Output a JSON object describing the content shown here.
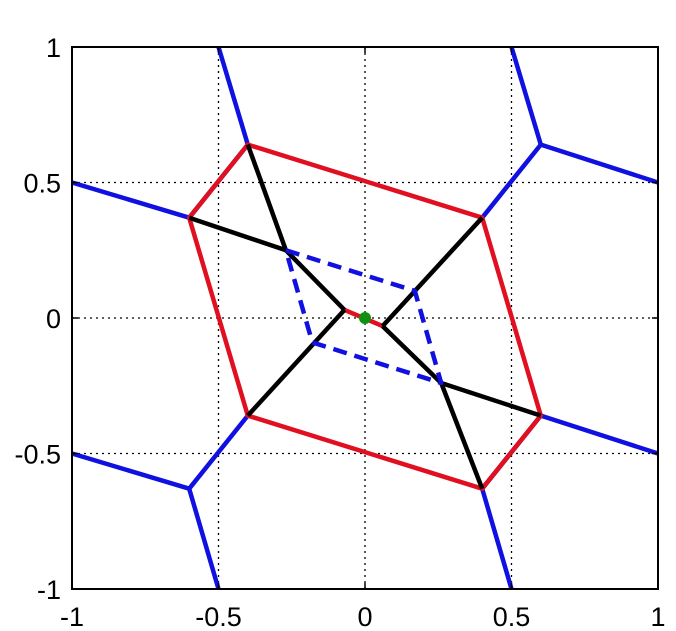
{
  "chart_data": {
    "type": "line",
    "title": "",
    "xlabel": "",
    "ylabel": "",
    "xlim": [
      -1,
      1
    ],
    "ylim": [
      -1,
      1
    ],
    "grid": true,
    "aspect": "equal",
    "x_ticks": [
      -1,
      -0.5,
      0,
      0.5,
      1
    ],
    "y_ticks": [
      -1,
      -0.5,
      0,
      0.5,
      1
    ],
    "x_tick_labels": [
      "-1",
      "-0.5",
      "0",
      "0.5",
      "1"
    ],
    "y_tick_labels": [
      "-1",
      "-0.5",
      "0",
      "0.5",
      "1"
    ],
    "colors": {
      "blue": "#1010e0",
      "red": "#e01020",
      "black": "#000000",
      "green": "#109010"
    },
    "series": [
      {
        "color": "blue",
        "style": "solid",
        "points": [
          [
            -0.5,
            1
          ],
          [
            -0.4,
            0.64
          ],
          [
            -0.6,
            0.37
          ],
          [
            -1,
            0.5
          ]
        ]
      },
      {
        "color": "blue",
        "style": "solid",
        "points": [
          [
            0.5,
            1
          ],
          [
            0.6,
            0.64
          ],
          [
            1,
            0.5
          ]
        ]
      },
      {
        "color": "blue",
        "style": "solid",
        "points": [
          [
            0.6,
            0.64
          ],
          [
            0.4,
            0.37
          ]
        ]
      },
      {
        "color": "blue",
        "style": "solid",
        "points": [
          [
            -1,
            -0.5
          ],
          [
            -0.6,
            -0.63
          ],
          [
            -0.4,
            -0.36
          ]
        ]
      },
      {
        "color": "blue",
        "style": "solid",
        "points": [
          [
            -0.6,
            -0.63
          ],
          [
            -0.5,
            -1
          ]
        ]
      },
      {
        "color": "blue",
        "style": "solid",
        "points": [
          [
            0.5,
            -1
          ],
          [
            0.4,
            -0.63
          ],
          [
            0.6,
            -0.36
          ],
          [
            1,
            -0.5
          ]
        ]
      },
      {
        "color": "red",
        "style": "solid",
        "closed": true,
        "points": [
          [
            -0.4,
            0.64
          ],
          [
            0.4,
            0.37
          ],
          [
            0.6,
            -0.36
          ],
          [
            0.4,
            -0.63
          ],
          [
            -0.4,
            -0.36
          ],
          [
            -0.6,
            0.37
          ]
        ]
      },
      {
        "color": "red",
        "style": "solid",
        "points": [
          [
            -0.07,
            0.03
          ],
          [
            0.06,
            -0.03
          ]
        ]
      },
      {
        "color": "black",
        "style": "solid",
        "points": [
          [
            -0.4,
            0.64
          ],
          [
            -0.27,
            0.25
          ],
          [
            -0.6,
            0.37
          ]
        ]
      },
      {
        "color": "black",
        "style": "solid",
        "points": [
          [
            -0.27,
            0.25
          ],
          [
            -0.07,
            0.03
          ]
        ]
      },
      {
        "color": "black",
        "style": "solid",
        "points": [
          [
            0.4,
            0.37
          ],
          [
            0.06,
            -0.03
          ]
        ]
      },
      {
        "color": "black",
        "style": "solid",
        "points": [
          [
            -0.4,
            -0.36
          ],
          [
            -0.07,
            0.03
          ]
        ]
      },
      {
        "color": "black",
        "style": "solid",
        "points": [
          [
            0.06,
            -0.03
          ],
          [
            0.26,
            -0.24
          ],
          [
            0.6,
            -0.36
          ]
        ]
      },
      {
        "color": "black",
        "style": "solid",
        "points": [
          [
            0.26,
            -0.24
          ],
          [
            0.4,
            -0.63
          ]
        ]
      },
      {
        "color": "blue",
        "style": "dashed",
        "closed": true,
        "points": [
          [
            -0.27,
            0.25
          ],
          [
            0.17,
            0.1
          ],
          [
            0.26,
            -0.24
          ],
          [
            -0.18,
            -0.09
          ]
        ]
      }
    ],
    "markers": [
      {
        "color": "green",
        "x": 0,
        "y": 0
      }
    ]
  }
}
